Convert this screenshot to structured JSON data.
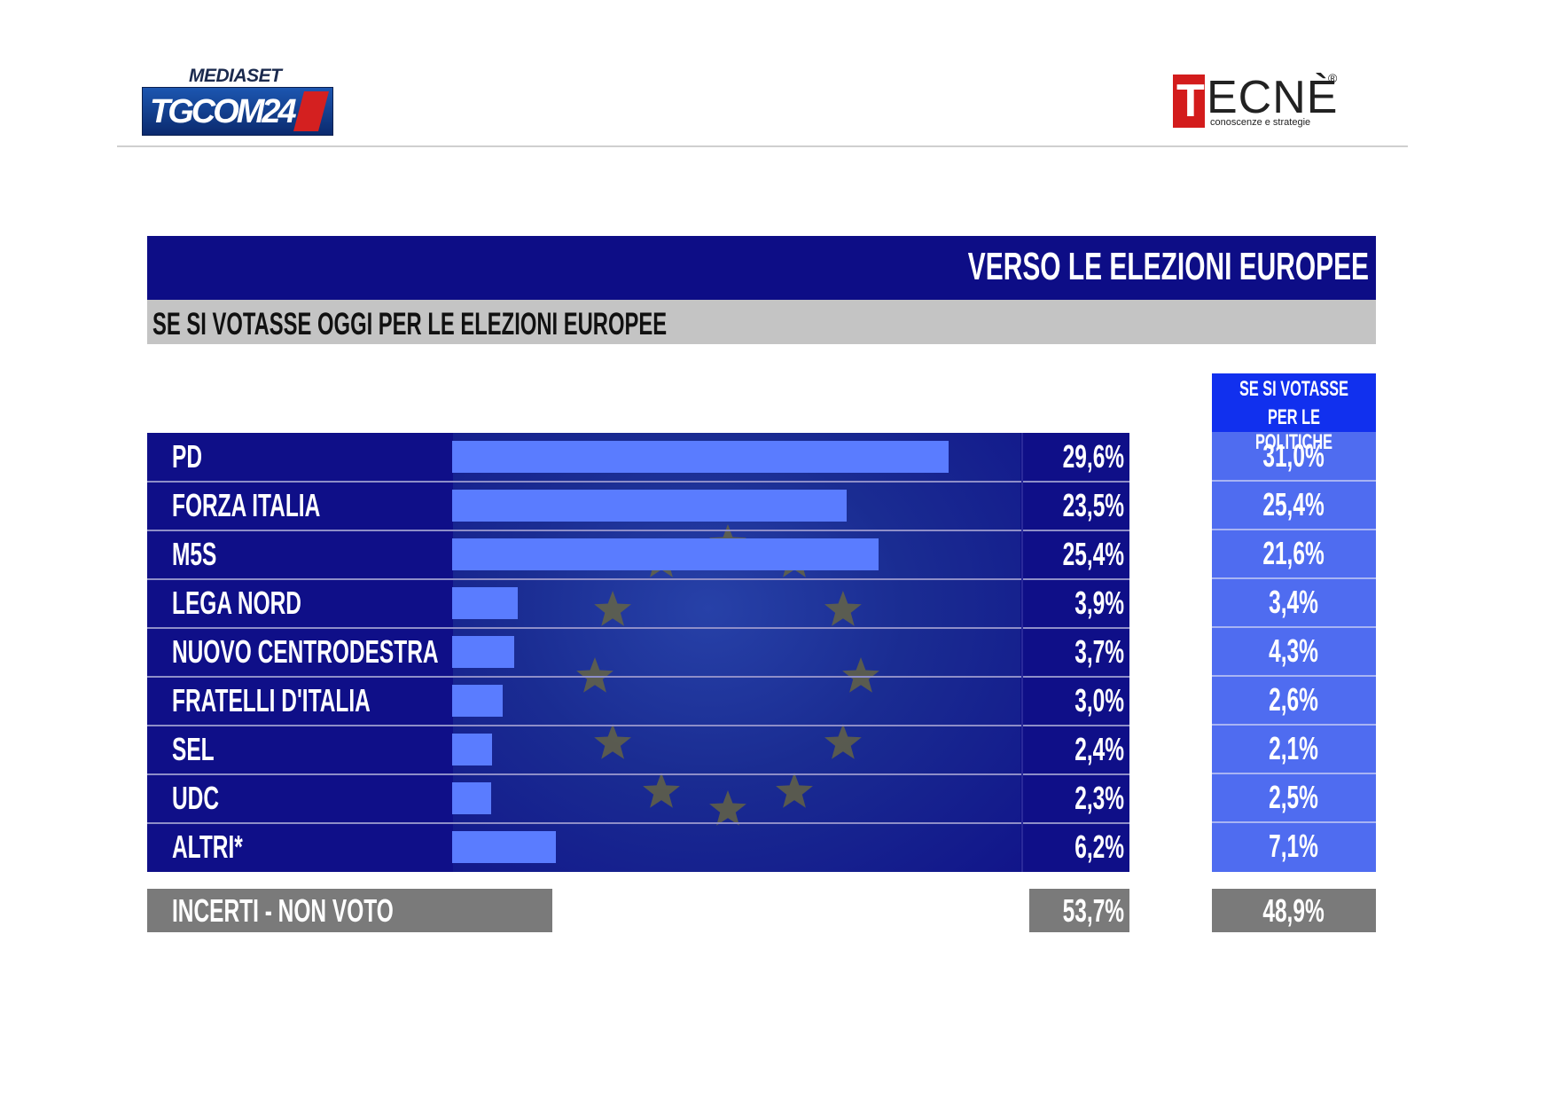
{
  "header": {
    "left_logo": {
      "top": "MEDIASET",
      "main": "TGCOM24"
    },
    "right_logo": {
      "initial": "T",
      "rest": "ECNÈ",
      "registered": "®",
      "tagline": "conoscenze e strategie"
    }
  },
  "title": "VERSO LE ELEZIONI EUROPEE",
  "subtitle": "SE SI VOTASSE OGGI PER LE ELEZIONI EUROPEE",
  "column2_header": {
    "line1": "SE SI VOTASSE",
    "line2": "PER LE POLITICHE"
  },
  "colors": {
    "bar": "#5a7cff",
    "panel": "#0f0f88",
    "column2": "#4f6cf0",
    "undecided": "#7a7a7a"
  },
  "chart_data": {
    "type": "bar",
    "orientation": "horizontal",
    "categories": [
      "PD",
      "FORZA ITALIA",
      "M5S",
      "LEGA NORD",
      "NUOVO CENTRODESTRA",
      "FRATELLI D'ITALIA",
      "SEL",
      "UDC",
      "ALTRI*"
    ],
    "series": [
      {
        "values": [
          29.6,
          23.5,
          25.4,
          3.9,
          3.7,
          3.0,
          2.4,
          2.3,
          6.2
        ],
        "labels": [
          "29,6%",
          "23,5%",
          "25,4%",
          "3,9%",
          "3,7%",
          "3,0%",
          "2,4%",
          "2,3%",
          "6,2%"
        ]
      },
      {
        "name": "SE SI VOTASSE PER LE POLITICHE",
        "values": [
          31.0,
          25.4,
          21.6,
          3.4,
          4.3,
          2.6,
          2.1,
          2.5,
          7.1
        ],
        "labels": [
          "31,0%",
          "25,4%",
          "21,6%",
          "3,4%",
          "4,3%",
          "2,6%",
          "2,1%",
          "2,5%",
          "7,1%"
        ]
      }
    ],
    "undecided": {
      "label": "INCERTI - NON VOTO",
      "values": [
        "53,7%",
        "48,9%"
      ]
    },
    "xlim": [
      0,
      30
    ]
  }
}
